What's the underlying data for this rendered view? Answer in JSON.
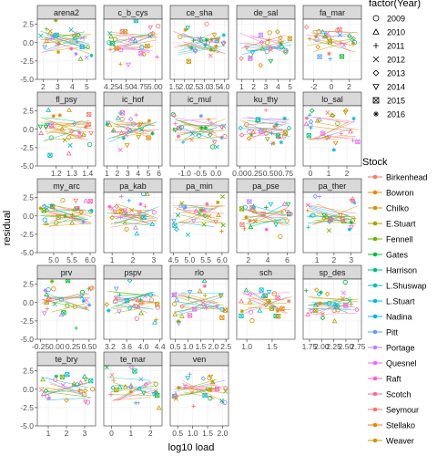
{
  "chart_data": {
    "type": "scatter",
    "xlabel": "log10 load",
    "ylabel": "residual",
    "shared_y": {
      "ylim": [
        -5,
        3.2
      ],
      "ticks": [
        "2.5",
        "0.0",
        "-2.5",
        "-5.0"
      ],
      "tick_values": [
        2.5,
        0,
        -2.5,
        -5
      ]
    },
    "grid": true,
    "panels": [
      {
        "name": "arena2",
        "xticks": [
          "2",
          "3",
          "4",
          "5"
        ],
        "tick_values": [
          2,
          3,
          4,
          5
        ],
        "xlim": [
          1.6,
          5.6
        ]
      },
      {
        "name": "c_b_cys",
        "xticks": [
          "4.25",
          "4.50",
          "4.75",
          "5.00"
        ],
        "tick_values": [
          4.25,
          4.5,
          4.75,
          5.0
        ],
        "xlim": [
          4.12,
          5.12
        ]
      },
      {
        "name": "ce_sha",
        "xticks": [
          "1.5",
          "2.0",
          "2.5",
          "3.0",
          "3.5",
          "4.0"
        ],
        "tick_values": [
          1.5,
          2,
          2.5,
          3,
          3.5,
          4
        ],
        "xlim": [
          1.3,
          4.2
        ]
      },
      {
        "name": "de_sal",
        "xticks": [
          "1",
          "2",
          "3",
          "4",
          "5"
        ],
        "tick_values": [
          1,
          2,
          3,
          4,
          5
        ],
        "xlim": [
          0.6,
          5.4
        ]
      },
      {
        "name": "fa_mar",
        "xticks": [
          "-2",
          "0",
          "2"
        ],
        "tick_values": [
          -2,
          0,
          2
        ],
        "xlim": [
          -3.2,
          3.4
        ]
      },
      {
        "name": "fl_psy",
        "xticks": [
          "1.2",
          "1.3",
          "1.4"
        ],
        "tick_values": [
          1.2,
          1.3,
          1.4
        ],
        "xlim": [
          1.08,
          1.45
        ]
      },
      {
        "name": "ic_hof",
        "xticks": [
          "1",
          "2",
          "3",
          "4",
          "5",
          "6"
        ],
        "tick_values": [
          1,
          2,
          3,
          4,
          5,
          6
        ],
        "xlim": [
          0.7,
          6.3
        ]
      },
      {
        "name": "ic_mul",
        "xticks": [
          "-1.0",
          "-0.5",
          "0.0"
        ],
        "tick_values": [
          -1,
          -0.5,
          0
        ],
        "xlim": [
          -1.45,
          0.4
        ]
      },
      {
        "name": "ku_thy",
        "xticks": [
          "0.00",
          "0.25",
          "0.50",
          "0.75"
        ],
        "tick_values": [
          0,
          0.25,
          0.5,
          0.75
        ],
        "xlim": [
          -0.05,
          0.9
        ]
      },
      {
        "name": "lo_sal",
        "xticks": [
          "0",
          "1",
          "2"
        ],
        "tick_values": [
          0,
          1,
          2
        ],
        "xlim": [
          -0.4,
          2.8
        ]
      },
      {
        "name": "my_arc",
        "xticks": [
          "5.0",
          "5.5",
          "6.0"
        ],
        "tick_values": [
          5,
          5.5,
          6
        ],
        "xlim": [
          4.55,
          6.15
        ]
      },
      {
        "name": "pa_kab",
        "xticks": [
          "1",
          "2",
          "3"
        ],
        "tick_values": [
          1,
          2,
          3
        ],
        "xlim": [
          0.6,
          3.4
        ]
      },
      {
        "name": "pa_min",
        "xticks": [
          "4.5",
          "5.0",
          "5.5",
          "6.0"
        ],
        "tick_values": [
          4.5,
          5,
          5.5,
          6
        ],
        "xlim": [
          4.4,
          6.2
        ]
      },
      {
        "name": "pa_pse",
        "xticks": [
          "2",
          "4",
          "6"
        ],
        "tick_values": [
          2,
          4,
          6
        ],
        "xlim": [
          0.8,
          6.8
        ]
      },
      {
        "name": "pa_ther",
        "xticks": [
          "1",
          "2",
          "3"
        ],
        "tick_values": [
          1,
          2,
          3
        ],
        "xlim": [
          0.2,
          3.6
        ]
      },
      {
        "name": "prv",
        "xticks": [
          "-0.25",
          "0.00",
          "0.25",
          "0.50"
        ],
        "tick_values": [
          -0.25,
          0,
          0.25,
          0.5
        ],
        "xlim": [
          -0.3,
          0.6
        ]
      },
      {
        "name": "pspv",
        "xticks": [
          "3.2",
          "3.6",
          "4.0",
          "4.4"
        ],
        "tick_values": [
          3.2,
          3.6,
          4.0,
          4.4
        ],
        "xlim": [
          3.05,
          4.45
        ]
      },
      {
        "name": "rlo",
        "xticks": [
          "0.5",
          "1.0",
          "1.5",
          "2.0",
          "2.5"
        ],
        "tick_values": [
          0.5,
          1,
          1.5,
          2,
          2.5
        ],
        "xlim": [
          0.3,
          2.6
        ]
      },
      {
        "name": "sch",
        "xticks": [
          "1.0",
          "1.5"
        ],
        "tick_values": [
          1.0,
          1.5
        ],
        "xlim": [
          0.8,
          1.95
        ]
      },
      {
        "name": "sp_des",
        "xticks": [
          "1.75",
          "2.00",
          "2.25",
          "2.50",
          "2.75"
        ],
        "tick_values": [
          1.75,
          2,
          2.25,
          2.5,
          2.75
        ],
        "xlim": [
          1.62,
          2.82
        ]
      },
      {
        "name": "te_bry",
        "xticks": [
          "1",
          "2",
          "3"
        ],
        "tick_values": [
          1,
          2,
          3
        ],
        "xlim": [
          0.4,
          3.6
        ]
      },
      {
        "name": "te_mar",
        "xticks": [
          "0",
          "1",
          "2"
        ],
        "tick_values": [
          0,
          1,
          2
        ],
        "xlim": [
          -0.4,
          2.6
        ]
      },
      {
        "name": "ven",
        "xticks": [
          "0.5",
          "1.0",
          "1.5",
          "2.0"
        ],
        "tick_values": [
          0.5,
          1.0,
          1.5,
          2.0
        ],
        "xlim": [
          0.25,
          2.2
        ]
      }
    ],
    "legend_shape": {
      "title": "factor(Year)",
      "entries": [
        {
          "label": "2009",
          "shape": "circle"
        },
        {
          "label": "2010",
          "shape": "triangle"
        },
        {
          "label": "2011",
          "shape": "plus"
        },
        {
          "label": "2012",
          "shape": "cross"
        },
        {
          "label": "2013",
          "shape": "diamond"
        },
        {
          "label": "2014",
          "shape": "triangle-down"
        },
        {
          "label": "2015",
          "shape": "square-cross"
        },
        {
          "label": "2016",
          "shape": "asterisk"
        }
      ]
    },
    "legend_color": {
      "title": "Stock",
      "entries": [
        {
          "label": "Birkenhead",
          "color": "#F8766D"
        },
        {
          "label": "Bowron",
          "color": "#E58700"
        },
        {
          "label": "Chilko",
          "color": "#C99800"
        },
        {
          "label": "E.Stuart",
          "color": "#A3A500"
        },
        {
          "label": "Fennell",
          "color": "#6BB100"
        },
        {
          "label": "Gates",
          "color": "#00BA38"
        },
        {
          "label": "Harrison",
          "color": "#00BF7D"
        },
        {
          "label": "L.Shuswap",
          "color": "#00C0AF"
        },
        {
          "label": "L.Stuart",
          "color": "#00BCD8"
        },
        {
          "label": "Nadina",
          "color": "#00B0F6"
        },
        {
          "label": "Pitt",
          "color": "#619CFF"
        },
        {
          "label": "Portage",
          "color": "#B983FF"
        },
        {
          "label": "Quesnel",
          "color": "#E76BF3"
        },
        {
          "label": "Raft",
          "color": "#FD61D1"
        },
        {
          "label": "Scotch",
          "color": "#FF67A4"
        },
        {
          "label": "Seymour",
          "color": "#F8766D"
        },
        {
          "label": "Stellako",
          "color": "#E58700"
        },
        {
          "label": "Weaver",
          "color": "#C99800"
        }
      ]
    },
    "legend_placement": "right"
  }
}
